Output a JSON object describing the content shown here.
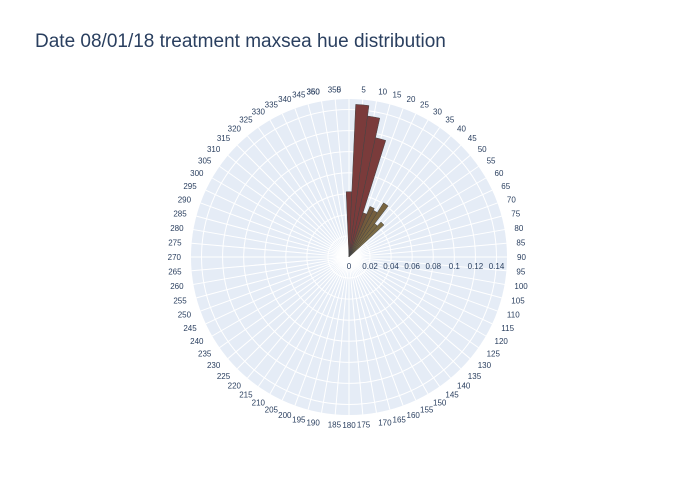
{
  "chart_data": {
    "type": "bar",
    "subtype": "polar",
    "title": "Date 08/01/18 treatment maxsea hue distribution",
    "angular_axis": {
      "rotation": "clockwise",
      "zero_direction": "north",
      "ticks": [
        0,
        5,
        10,
        15,
        20,
        25,
        30,
        35,
        40,
        45,
        50,
        55,
        60,
        65,
        70,
        75,
        80,
        85,
        90,
        95,
        100,
        105,
        110,
        115,
        120,
        125,
        130,
        135,
        140,
        145,
        150,
        155,
        160,
        165,
        170,
        175,
        180,
        185,
        190,
        195,
        200,
        205,
        210,
        215,
        220,
        225,
        230,
        235,
        240,
        245,
        250,
        255,
        260,
        265,
        270,
        275,
        280,
        285,
        290,
        295,
        300,
        305,
        310,
        315,
        320,
        325,
        330,
        335,
        340,
        345,
        350,
        355,
        360
      ]
    },
    "radial_axis": {
      "range": [
        0,
        0.15
      ],
      "tick_labels": [
        "0",
        "0.02",
        "0.04",
        "0.06",
        "0.08",
        "0.1",
        "0.12",
        "0.14"
      ],
      "tick_values": [
        0,
        0.02,
        0.04,
        0.06,
        0.08,
        0.1,
        0.12,
        0.14
      ]
    },
    "grid": true,
    "bin_width": 5,
    "bars": [
      {
        "theta": 360,
        "r": 0.062,
        "color": "#7a3b3b"
      },
      {
        "theta": 5,
        "r": 0.145,
        "color": "#7a3b3b"
      },
      {
        "theta": 10,
        "r": 0.135,
        "color": "#7a3b3b"
      },
      {
        "theta": 15,
        "r": 0.116,
        "color": "#7a3b3b"
      },
      {
        "theta": 20,
        "r": 0.044,
        "color": "#744a3a"
      },
      {
        "theta": 25,
        "r": 0.052,
        "color": "#735a3c"
      },
      {
        "theta": 30,
        "r": 0.05,
        "color": "#755f3e"
      },
      {
        "theta": 35,
        "r": 0.061,
        "color": "#786440"
      },
      {
        "theta": 40,
        "r": 0.04,
        "color": "#7a6842"
      },
      {
        "theta": 45,
        "r": 0.045,
        "color": "#7c6c45"
      }
    ],
    "colors": {
      "background": "#e5ecf6",
      "grid": "#ffffff",
      "text": "#2a3f5f"
    }
  }
}
